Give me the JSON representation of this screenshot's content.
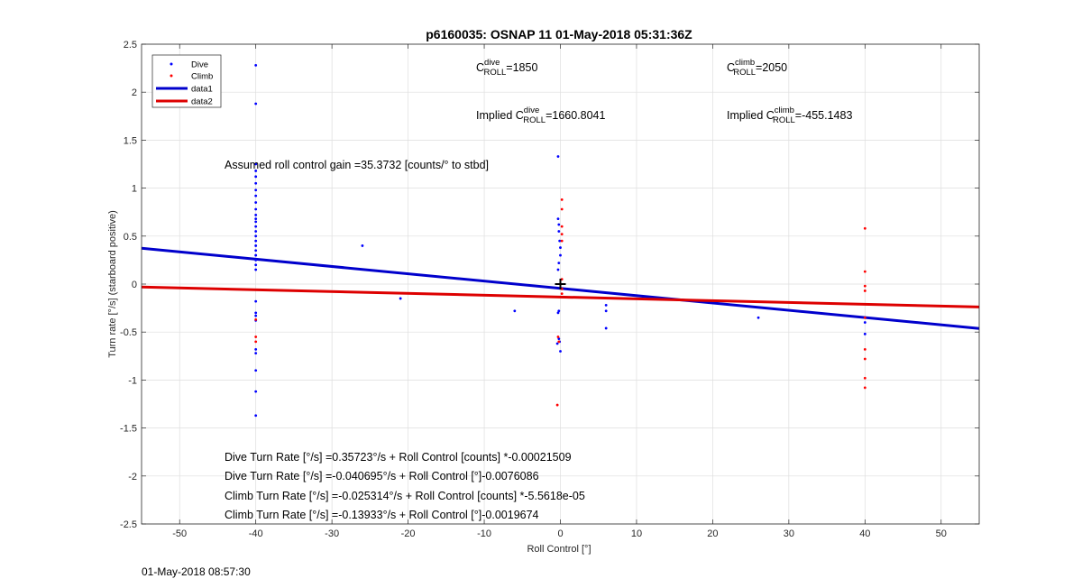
{
  "chart_data": {
    "type": "scatter",
    "title": "p6160035: OSNAP 11 01-May-2018 05:31:36Z",
    "xlabel": "Roll Control [°]",
    "ylabel": "Turn rate [°/s] (starboard positive)",
    "xlim": [
      -55,
      55
    ],
    "ylim": [
      -2.5,
      2.5
    ],
    "xticks": [
      -50,
      -40,
      -30,
      -20,
      -10,
      0,
      10,
      20,
      30,
      40,
      50
    ],
    "yticks": [
      -2.5,
      -2,
      -1.5,
      -1,
      -0.5,
      0,
      0.5,
      1,
      1.5,
      2,
      2.5
    ],
    "grid": true,
    "legend": {
      "placement": "top-left",
      "entries": [
        {
          "label": "Dive",
          "type": "marker",
          "color": "#0000ff"
        },
        {
          "label": "Climb",
          "type": "marker",
          "color": "#ff0000"
        },
        {
          "label": "data1",
          "type": "line",
          "color": "#0000cc"
        },
        {
          "label": "data2",
          "type": "line",
          "color": "#dd0000"
        }
      ]
    },
    "series": [
      {
        "name": "Dive",
        "kind": "points",
        "color": "#0000ff",
        "x": [
          -40,
          -40,
          -40,
          -40,
          -40,
          -40,
          -40,
          -40,
          -40,
          -40,
          -40,
          -40,
          -40,
          -40,
          -40,
          -40,
          -40,
          -40,
          -40,
          -40,
          -40,
          -40,
          -40,
          -40,
          -40,
          -40,
          -40,
          -40,
          -40,
          -40,
          -40,
          -40,
          -26,
          -21,
          -6,
          -0.3,
          -0.3,
          -0.2,
          -0.2,
          -0.1,
          0,
          0,
          -0.2,
          -0.3,
          -0.2,
          -0.3,
          -0.2,
          -0.1,
          -0.4,
          0,
          6,
          6,
          6,
          26,
          40,
          40
        ],
        "y": [
          2.28,
          1.88,
          1.25,
          1.18,
          1.12,
          1.05,
          0.98,
          0.92,
          0.85,
          0.78,
          0.72,
          0.68,
          0.65,
          0.6,
          0.55,
          0.5,
          0.45,
          0.4,
          0.35,
          0.3,
          0.25,
          0.2,
          0.15,
          -0.18,
          -0.3,
          -0.33,
          -0.38,
          -0.68,
          -0.72,
          -0.9,
          -1.12,
          -1.37,
          0.4,
          -0.15,
          -0.28,
          1.33,
          0.68,
          0.62,
          0.55,
          0.45,
          0.38,
          0.3,
          0.22,
          0.15,
          -0.28,
          -0.3,
          -0.57,
          -0.6,
          -0.62,
          -0.7,
          -0.22,
          -0.28,
          -0.46,
          -0.35,
          -0.4,
          -0.52
        ]
      },
      {
        "name": "Climb",
        "kind": "points",
        "color": "#ff0000",
        "x": [
          -40,
          -40,
          -40,
          0.2,
          0.2,
          0.2,
          0.2,
          0.2,
          0.2,
          0.2,
          0.2,
          -0.3,
          -0.4,
          -0.2,
          40,
          40,
          40,
          40,
          40,
          40,
          40,
          40,
          40
        ],
        "y": [
          -0.55,
          -0.6,
          -0.37,
          0.88,
          0.78,
          0.6,
          0.52,
          0.45,
          0.05,
          -0.05,
          -0.1,
          -0.55,
          -1.26,
          -0.6,
          0.58,
          0.13,
          -0.02,
          -0.07,
          -0.35,
          -0.68,
          -0.78,
          -0.98,
          -1.08
        ]
      },
      {
        "name": "data1",
        "kind": "line",
        "color": "#0000cc",
        "x": [
          -55,
          55
        ],
        "y": [
          0.3735,
          -0.4629
        ]
      },
      {
        "name": "data2",
        "kind": "line",
        "color": "#dd0000",
        "x": [
          -55,
          55
        ],
        "y": [
          -0.0307,
          -0.2389
        ]
      }
    ],
    "crosshair": {
      "x": 0,
      "y": 0
    },
    "annotations": {
      "cdive_main": "C",
      "cdive_sup": "dive",
      "cdive_sub": "ROLL",
      "cdive_val": "=1850",
      "cclimb_main": "C",
      "cclimb_sup": "climb",
      "cclimb_sub": "ROLL",
      "cclimb_val": "=2050",
      "implied_dive_prefix": "Implied C",
      "implied_dive_sup": "dive",
      "implied_dive_sub": "ROLL",
      "implied_dive_val": "=1660.8041",
      "implied_climb_prefix": "Implied C",
      "implied_climb_sup": "climb",
      "implied_climb_sub": "ROLL",
      "implied_climb_val": "=-455.1483",
      "gain": "Assumed roll control gain =35.3732 [counts/° to stbd]",
      "fit1": "Dive Turn Rate [°/s] =0.35723°/s + Roll Control [counts] *-0.00021509",
      "fit2": "Dive Turn Rate [°/s] =-0.040695°/s + Roll Control [°]-0.0076086",
      "fit3": "Climb Turn Rate [°/s] =-0.025314°/s + Roll Control [counts] *-5.5618e-05",
      "fit4": "Climb Turn Rate [°/s] =-0.13933°/s + Roll Control [°]-0.0019674"
    },
    "footer": "01-May-2018 08:57:30"
  }
}
